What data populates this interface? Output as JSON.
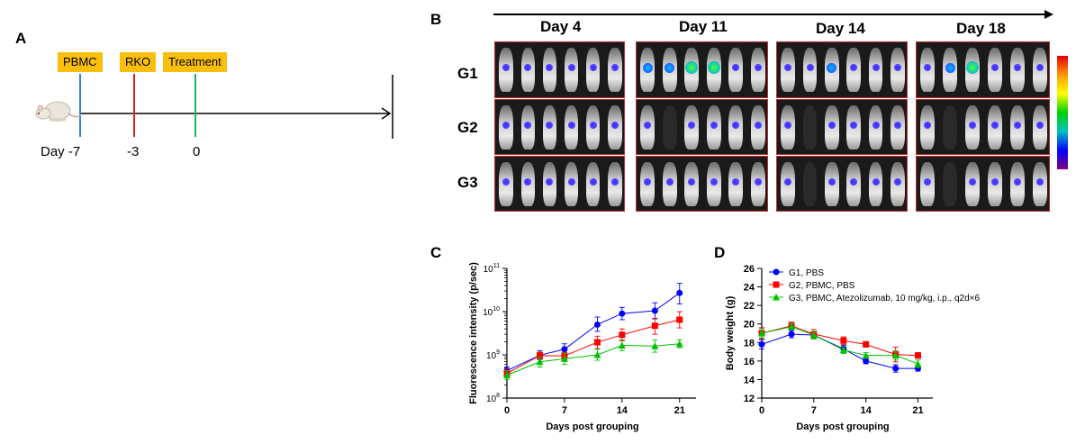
{
  "panelA": {
    "letter": "A",
    "tags": [
      "PBMC",
      "RKO",
      "Treatment"
    ],
    "tag_colors": [
      "#2e86de",
      "#e02020",
      "#27ae60"
    ],
    "labels": [
      "Day -7",
      "-3",
      "0"
    ],
    "icon": "mouse-icon"
  },
  "panelB": {
    "letter": "B",
    "days": [
      "Day 4",
      "Day 11",
      "Day 14",
      "Day 18"
    ],
    "groups": [
      "G1",
      "G2",
      "G3"
    ]
  },
  "chart_data": [
    {
      "id": "C",
      "type": "line",
      "letter": "C",
      "xlabel": "Days post grouping",
      "ylabel": "Fluorescence intensity (p/sec)",
      "yscale": "log",
      "ylim": [
        100000000,
        100000000000
      ],
      "xlim": [
        0,
        23
      ],
      "xticks": [
        0,
        7,
        14,
        21
      ],
      "yticks": [
        {
          "base": "10",
          "exp": "8",
          "value": 100000000
        },
        {
          "base": "10",
          "exp": "9",
          "value": 1000000000
        },
        {
          "base": "10",
          "exp": "10",
          "value": 10000000000
        },
        {
          "base": "10",
          "exp": "11",
          "value": 100000000000
        }
      ],
      "x": [
        0,
        4,
        7,
        11,
        14,
        18,
        21
      ],
      "series": [
        {
          "color": "#0000ff",
          "marker": "circle",
          "values": [
            430000000,
            980000000,
            1350000000,
            5000000000,
            9000000000,
            10500000000,
            27000000000
          ],
          "err": [
            [
              360000000,
              520000000
            ],
            [
              780000000,
              1250000000
            ],
            [
              1050000000,
              1800000000
            ],
            [
              3500000000,
              7500000000
            ],
            [
              6500000000,
              12500000000
            ],
            [
              6800000000,
              16000000000
            ],
            [
              15000000000,
              45000000000
            ]
          ]
        },
        {
          "color": "#ff0000",
          "marker": "square",
          "values": [
            370000000,
            960000000,
            950000000,
            1950000000,
            2900000000,
            4700000000,
            6500000000
          ],
          "err": [
            [
              300000000,
              460000000
            ],
            [
              800000000,
              1150000000
            ],
            [
              780000000,
              1150000000
            ],
            [
              1400000000,
              2700000000
            ],
            [
              2100000000,
              4000000000
            ],
            [
              3000000000,
              7000000000
            ],
            [
              4200000000,
              10000000000
            ]
          ]
        },
        {
          "color": "#00c000",
          "marker": "triangle",
          "values": [
            340000000,
            690000000,
            810000000,
            1000000000,
            1650000000,
            1600000000,
            1800000000
          ],
          "err": [
            [
              270000000,
              430000000
            ],
            [
              520000000,
              900000000
            ],
            [
              600000000,
              1100000000
            ],
            [
              750000000,
              1350000000
            ],
            [
              1250000000,
              2200000000
            ],
            [
              1150000000,
              2200000000
            ],
            [
              1450000000,
              2250000000
            ]
          ]
        }
      ]
    },
    {
      "id": "D",
      "type": "line",
      "letter": "D",
      "xlabel": "Days post grouping",
      "ylabel": "Body weight (g)",
      "ylim": [
        12,
        26
      ],
      "xlim": [
        0,
        23
      ],
      "xticks": [
        0,
        7,
        14,
        21
      ],
      "yticks": [
        12,
        14,
        16,
        18,
        20,
        22,
        24,
        26
      ],
      "legend_position": "top-left",
      "x": [
        0,
        4,
        7,
        11,
        14,
        18,
        21
      ],
      "series": [
        {
          "name": "G1, PBS",
          "color": "#0000ff",
          "marker": "circle",
          "values": [
            17.8,
            18.9,
            18.8,
            17.3,
            16.0,
            15.2,
            15.2
          ],
          "err": [
            0.5,
            0.4,
            0.4,
            0.4,
            0.3,
            0.4,
            0.3
          ]
        },
        {
          "name": "G2, PBMC, PBS",
          "color": "#ff0000",
          "marker": "square",
          "values": [
            19.0,
            19.8,
            18.9,
            18.2,
            17.8,
            16.7,
            16.6
          ],
          "err": [
            0.6,
            0.4,
            0.5,
            0.4,
            0.3,
            0.8,
            0.3
          ]
        },
        {
          "name": "G3, PBMC, Atezolizumab, 10 mg/kg, i.p., q2d×6",
          "color": "#00c000",
          "marker": "triangle",
          "values": [
            19.0,
            19.7,
            18.8,
            17.2,
            16.6,
            16.6,
            15.7
          ],
          "err": [
            0.5,
            0.3,
            0.4,
            0.4,
            0.3,
            0.5,
            0.4
          ]
        }
      ]
    }
  ]
}
